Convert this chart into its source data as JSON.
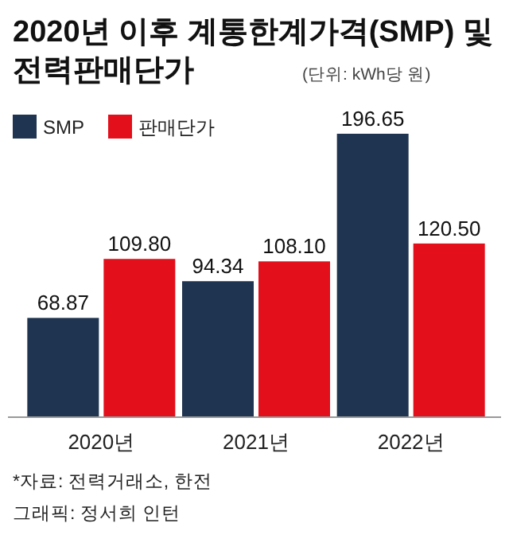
{
  "chart_data": {
    "type": "bar",
    "title": "2020년 이후 계통한계가격(SMP) 및 전력판매단가",
    "subtitle": "(단위: kWh당 원)",
    "categories": [
      "2020년",
      "2021년",
      "2022년"
    ],
    "series": [
      {
        "name": "SMP",
        "color": "#1e3450",
        "values": [
          68.87,
          94.34,
          196.65
        ],
        "value_labels": [
          "68.87",
          "94.34",
          "196.65"
        ]
      },
      {
        "name": "판매단가",
        "color": "#e3101b",
        "values": [
          109.8,
          108.1,
          120.5
        ],
        "value_labels": [
          "109.80",
          "108.10",
          "120.50"
        ]
      }
    ],
    "legend": "top left",
    "annotations": [
      "*자료: 전력거래소, 한전",
      "그래픽: 정서희 인턴"
    ]
  }
}
